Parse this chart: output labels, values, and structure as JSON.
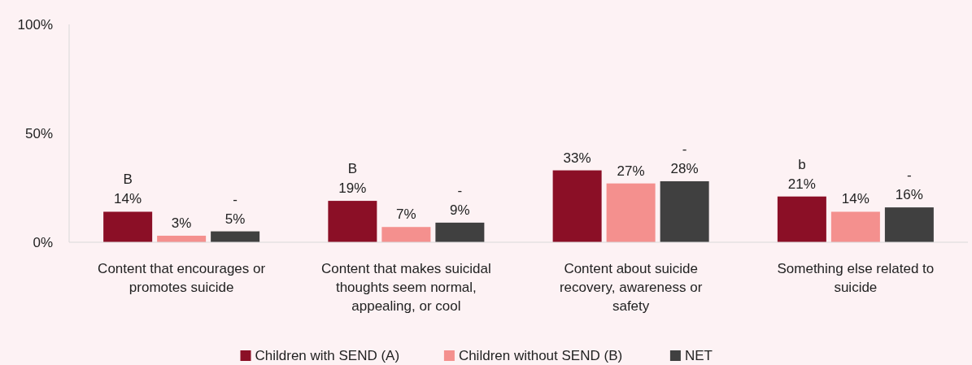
{
  "chart_data": {
    "type": "bar",
    "categories": [
      "Content that encourages or promotes suicide",
      "Content that makes suicidal thoughts seem normal, appealing, or cool",
      "Content about suicide recovery, awareness or safety",
      "Something else related to suicide"
    ],
    "series": [
      {
        "name": "Children with SEND (A)",
        "color": "#8b0f26",
        "values": [
          14,
          19,
          33,
          21
        ],
        "value_labels": [
          "B\n14%",
          "B\n19%",
          "33%",
          "b\n21%"
        ]
      },
      {
        "name": "Children without SEND (B)",
        "color": "#f4908e",
        "values": [
          3,
          7,
          27,
          14
        ],
        "value_labels": [
          "3%",
          "7%",
          "27%",
          "14%"
        ]
      },
      {
        "name": "NET",
        "color": "#404040",
        "values": [
          5,
          9,
          28,
          16
        ],
        "value_labels": [
          "5%",
          "9%",
          "28%",
          "16%"
        ]
      }
    ],
    "annotations": [
      "-",
      "-",
      "-",
      "-"
    ],
    "ylim": [
      0,
      100
    ],
    "yticks": [
      {
        "value": 0,
        "label": "0%"
      },
      {
        "value": 50,
        "label": "50%"
      },
      {
        "value": 100,
        "label": "100%"
      }
    ],
    "legend": "bottom",
    "grid": false
  }
}
